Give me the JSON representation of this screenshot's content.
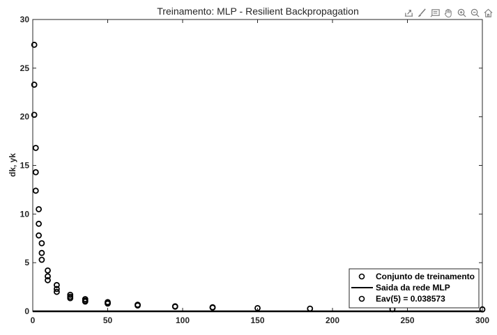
{
  "toolbar": {
    "icons": [
      "export-icon",
      "brush-icon",
      "datatip-icon",
      "pan-icon",
      "zoom-in-icon",
      "zoom-out-icon",
      "home-icon"
    ]
  },
  "chart_data": {
    "type": "scatter",
    "title": "Treinamento: MLP - Resilient Backpropagation",
    "xlabel": "",
    "ylabel": "dk, yk",
    "xlim": [
      0,
      300
    ],
    "ylim": [
      0,
      30
    ],
    "xticks": [
      "0",
      "50",
      "100",
      "150",
      "200",
      "250",
      "300"
    ],
    "yticks": [
      "0",
      "5",
      "10",
      "15",
      "20",
      "25",
      "30"
    ],
    "grid": false,
    "legend_position": "bottom-right",
    "series": [
      {
        "name": "Conjunto de treinamento",
        "marker": "circle",
        "color": "#000000",
        "points": [
          [
            1,
            27.4
          ],
          [
            1,
            23.3
          ],
          [
            1,
            20.2
          ],
          [
            2,
            16.8
          ],
          [
            2,
            14.3
          ],
          [
            2,
            12.4
          ],
          [
            4,
            10.5
          ],
          [
            4,
            9.0
          ],
          [
            4,
            7.8
          ],
          [
            6,
            7.0
          ],
          [
            6,
            6.0
          ],
          [
            6,
            5.3
          ],
          [
            10,
            4.2
          ],
          [
            10,
            3.6
          ],
          [
            10,
            3.2
          ],
          [
            16,
            2.7
          ],
          [
            16,
            2.3
          ],
          [
            16,
            2.0
          ],
          [
            25,
            1.7
          ],
          [
            25,
            1.5
          ],
          [
            25,
            1.35
          ],
          [
            35,
            1.25
          ],
          [
            35,
            1.1
          ],
          [
            35,
            1.0
          ],
          [
            50,
            0.95
          ],
          [
            50,
            0.85
          ],
          [
            50,
            0.8
          ],
          [
            70,
            0.68
          ],
          [
            70,
            0.6
          ],
          [
            95,
            0.52
          ],
          [
            95,
            0.48
          ],
          [
            120,
            0.42
          ],
          [
            120,
            0.38
          ],
          [
            150,
            0.33
          ],
          [
            185,
            0.28
          ],
          [
            240,
            0.22
          ],
          [
            300,
            0.2
          ]
        ]
      },
      {
        "name": "Saida da rede MLP",
        "style": "line",
        "color": "#000000",
        "points": [
          [
            0,
            0
          ],
          [
            300,
            0
          ]
        ]
      },
      {
        "name": "Eav(5) = 0.038573",
        "marker": "circle",
        "color": "#000000",
        "points": []
      }
    ]
  }
}
